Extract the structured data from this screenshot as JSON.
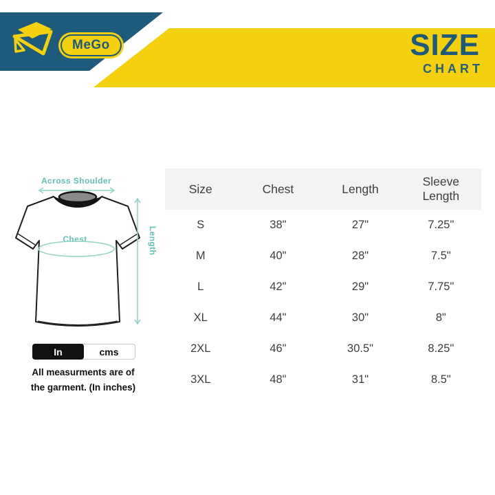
{
  "header": {
    "brand": "MeGo",
    "title_word": "SIZE",
    "title_sub": "CHART"
  },
  "colors": {
    "brand_blue": "#1d5a7c",
    "brand_yellow": "#f4d00e",
    "teal_label": "#63c2b2",
    "teal_arrow": "#93d4c8",
    "table_text": "#3e3e3e",
    "table_header_bg": "#f3f3f3",
    "toggle_active_bg": "#111111"
  },
  "diagram": {
    "across_shoulder_label": "Across Shoulder",
    "chest_label": "Chest",
    "length_label": "Length"
  },
  "unit_toggle": {
    "options": [
      {
        "label": "In",
        "selected": true
      },
      {
        "label": "cms",
        "selected": false
      }
    ]
  },
  "note": {
    "line1": "All measurments are of",
    "line2": "the garment. (In inches)"
  },
  "chart_data": {
    "type": "table",
    "title": "SIZE CHART",
    "columns": [
      "Size",
      "Chest",
      "Length",
      "Sleeve Length"
    ],
    "rows": [
      [
        "S",
        "38\"",
        "27\"",
        "7.25\""
      ],
      [
        "M",
        "40\"",
        "28\"",
        "7.5\""
      ],
      [
        "L",
        "42\"",
        "29\"",
        "7.75\""
      ],
      [
        "XL",
        "44\"",
        "30\"",
        "8\""
      ],
      [
        "2XL",
        "46\"",
        "30.5\"",
        "8.25\""
      ],
      [
        "3XL",
        "48\"",
        "31\"",
        "8.5\""
      ]
    ],
    "selected_unit": "In",
    "note": "All measurments are of the garment. (In inches)"
  }
}
